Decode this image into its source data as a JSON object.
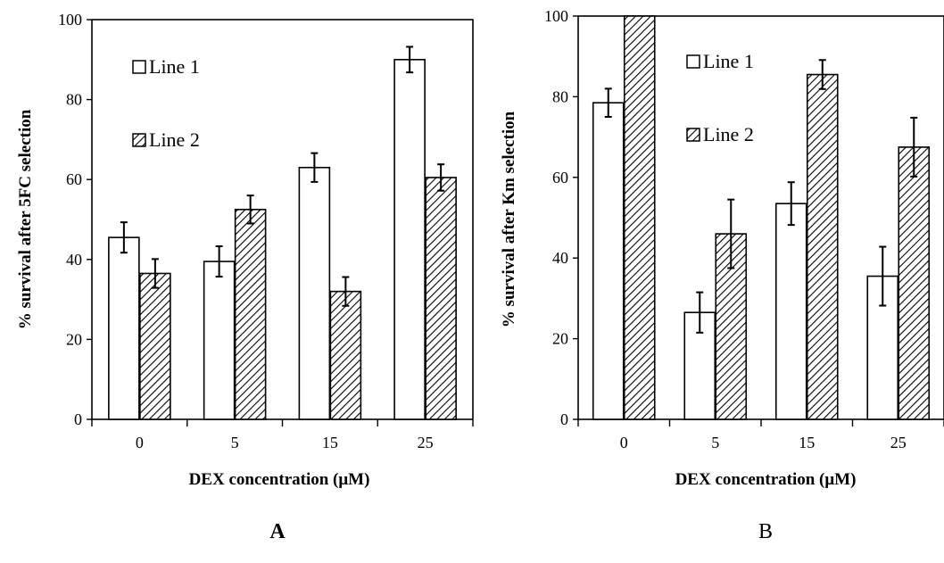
{
  "chart_data": [
    {
      "type": "bar",
      "panel_label": "A",
      "categories": [
        "0",
        "5",
        "15",
        "25"
      ],
      "series": [
        {
          "name": "Line 1",
          "values": [
            45.5,
            39.5,
            63,
            90
          ],
          "errors": [
            3.8,
            3.8,
            3.6,
            3.2
          ],
          "fill": "white"
        },
        {
          "name": "Line 2",
          "values": [
            36.5,
            52.5,
            32,
            60.5
          ],
          "errors": [
            3.6,
            3.5,
            3.6,
            3.3
          ],
          "fill": "hatched"
        }
      ],
      "xlabel": "DEX concentration (μM)",
      "ylabel": "% survival  after 5FC selection",
      "ylim": [
        0,
        100
      ],
      "yticks": [
        "0",
        "20",
        "40",
        "60",
        "80",
        "100"
      ],
      "legend_position": "upper-left inside plot",
      "grid": false
    },
    {
      "type": "bar",
      "panel_label": "B",
      "categories": [
        "0",
        "5",
        "15",
        "25"
      ],
      "series": [
        {
          "name": "Line 1",
          "values": [
            78.5,
            26.5,
            53.5,
            35.5
          ],
          "errors": [
            3.5,
            5,
            5.3,
            7.3
          ],
          "fill": "white"
        },
        {
          "name": "Line 2",
          "values": [
            100,
            46,
            85.5,
            67.5
          ],
          "errors": [
            0,
            8.5,
            3.6,
            7.3
          ],
          "fill": "hatched"
        }
      ],
      "xlabel": "DEX concentration (μM)",
      "ylabel": "% survival  after Km selection",
      "ylim": [
        0,
        100
      ],
      "yticks": [
        "0",
        "20",
        "40",
        "60",
        "80",
        "100"
      ],
      "legend_position": "upper-center inside plot",
      "grid": false
    }
  ],
  "colors": {
    "bar_fill_1": "#ffffff",
    "bar_stroke": "#000000",
    "hatch": "#000000"
  }
}
